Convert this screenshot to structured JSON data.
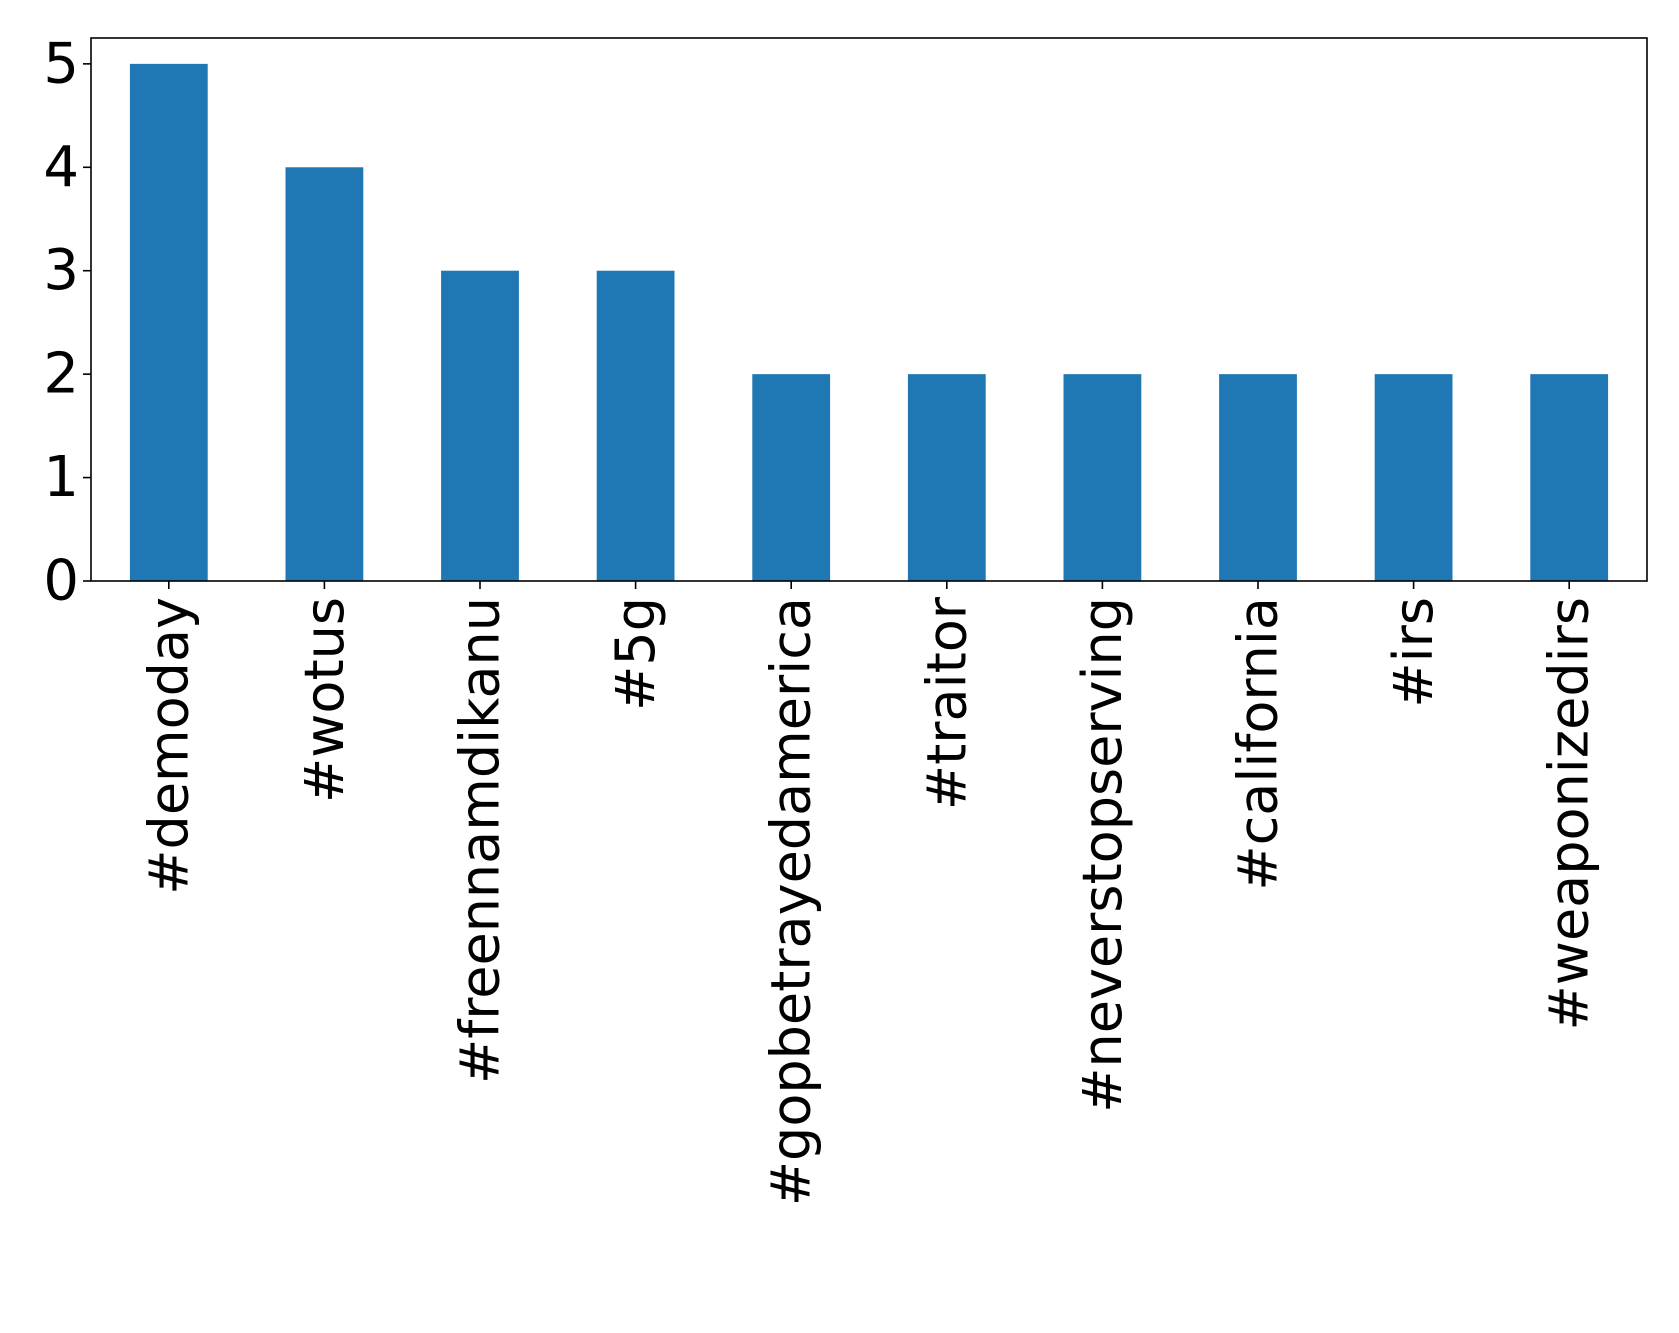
{
  "chart_data": {
    "type": "bar",
    "categories": [
      "#demoday",
      "#wotus",
      "#freennamdikanu",
      "#5g",
      "#gopbetrayedamerica",
      "#traitor",
      "#neverstopserving",
      "#california",
      "#irs",
      "#weaponizedirs"
    ],
    "values": [
      5,
      4,
      3,
      3,
      2,
      2,
      2,
      2,
      2,
      2
    ],
    "yticks": [
      "0",
      "1",
      "2",
      "3",
      "4",
      "5"
    ],
    "ylim": [
      0,
      5.25
    ],
    "bar_color": "#1f77b4",
    "grid": false,
    "legend": "none"
  }
}
